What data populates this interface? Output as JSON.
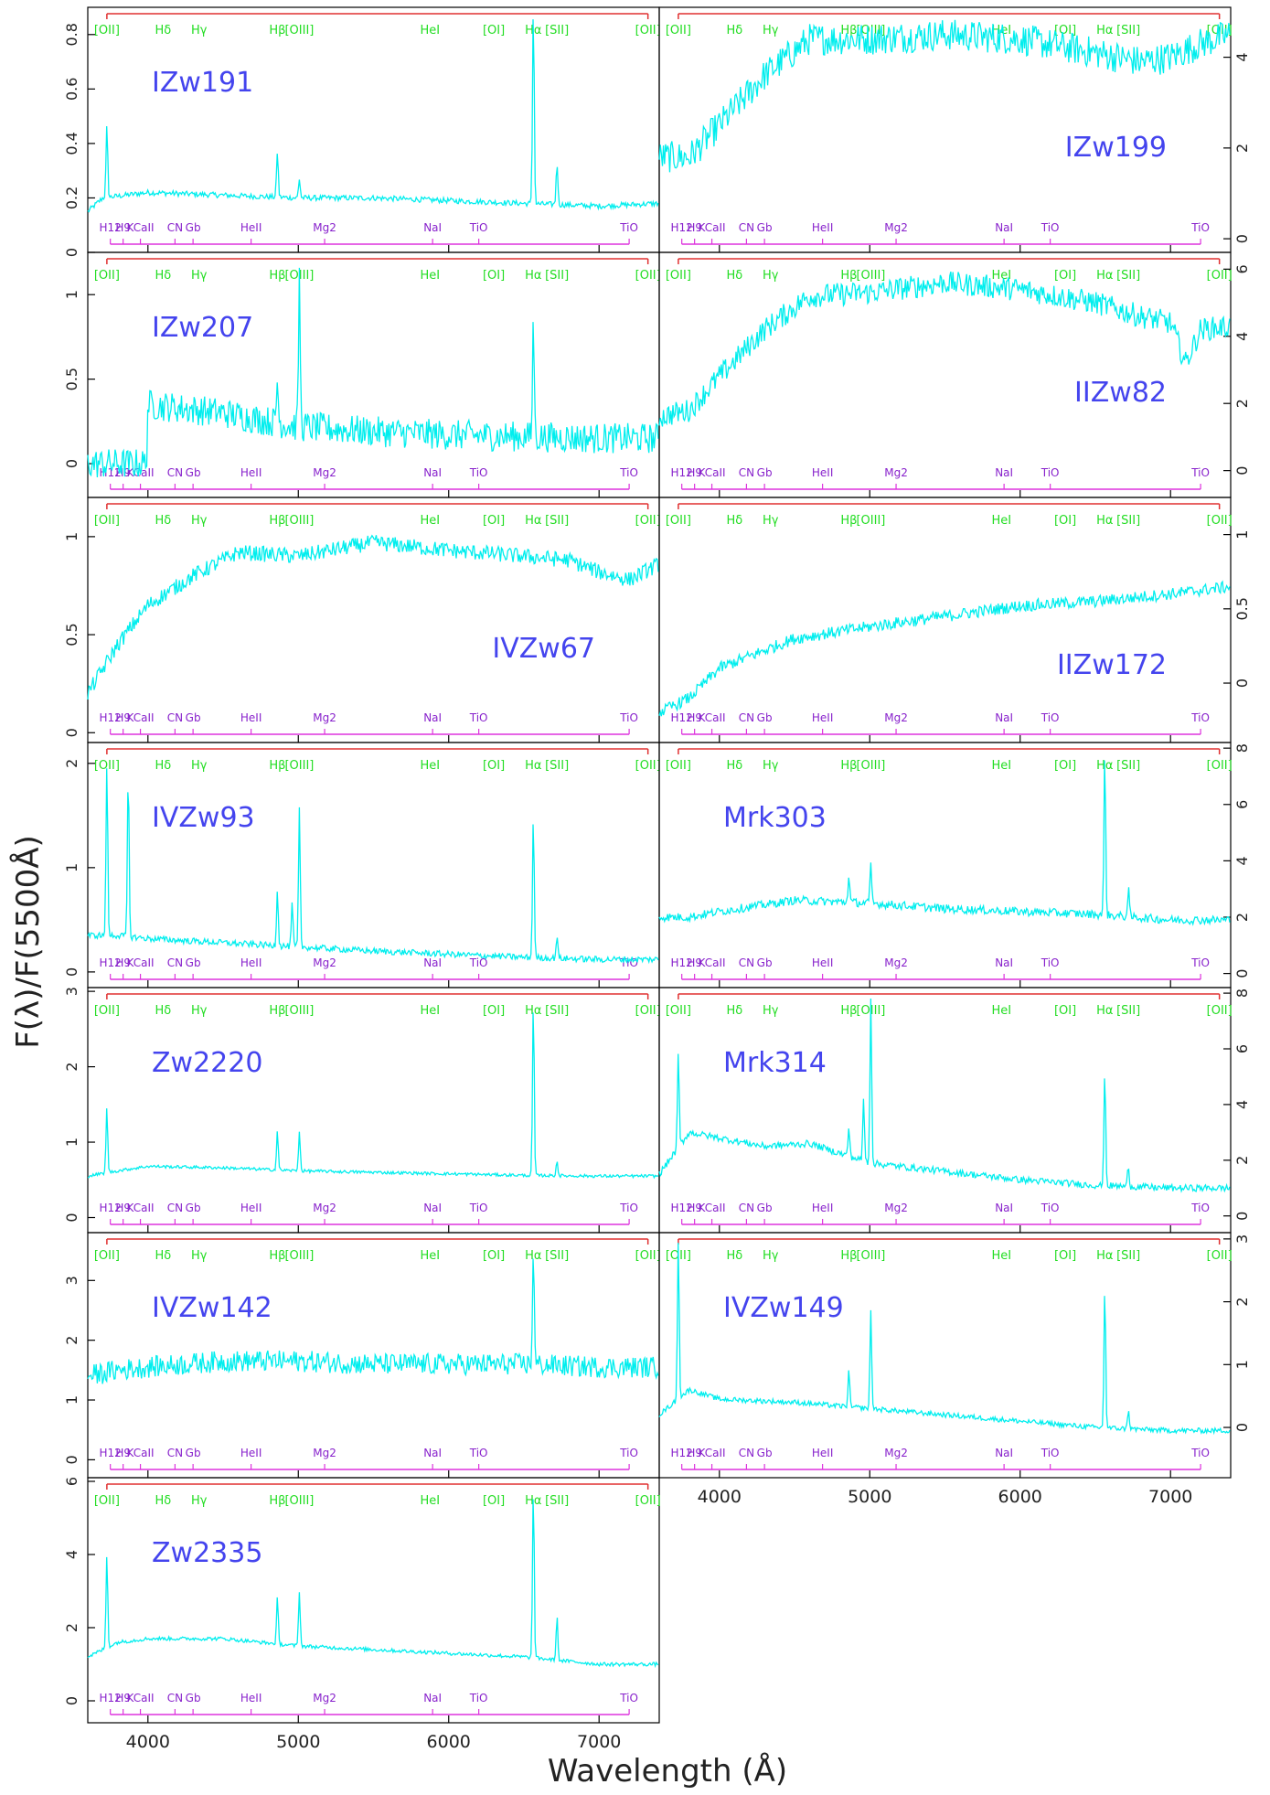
{
  "figure": {
    "xlabel": "Wavelength (Å)",
    "ylabel": "F(λ)/F(5500Å)",
    "xlim": [
      3600,
      7400
    ],
    "xticks": [
      4000,
      5000,
      6000,
      7000
    ]
  },
  "emission_lines": [
    {
      "label": "[OII]",
      "x": 3727
    },
    {
      "label": "Hδ",
      "x": 4101
    },
    {
      "label": "Hγ",
      "x": 4340
    },
    {
      "label": "Hβ",
      "x": 4861
    },
    {
      "label": "[OIII]",
      "x": 5007
    },
    {
      "label": "HeI",
      "x": 5876
    },
    {
      "label": "[OI]",
      "x": 6300
    },
    {
      "label": "Hα",
      "x": 6563
    },
    {
      "label": "[SII]",
      "x": 6720
    },
    {
      "label": "[OII]",
      "x": 7325
    }
  ],
  "absorption_lines": [
    {
      "label": "H12",
      "x": 3750
    },
    {
      "label": "H9",
      "x": 3835
    },
    {
      "label": "KCaII",
      "x": 3950
    },
    {
      "label": "CN",
      "x": 4180
    },
    {
      "label": "Gb",
      "x": 4300
    },
    {
      "label": "HeII",
      "x": 4686
    },
    {
      "label": "Mg2",
      "x": 5175
    },
    {
      "label": "NaI",
      "x": 5893
    },
    {
      "label": "TiO",
      "x": 6200
    },
    {
      "label": "TiO",
      "x": 7200
    }
  ],
  "chart_data": [
    {
      "type": "line",
      "name": "IZw191",
      "ylim": [
        0,
        0.9
      ],
      "yticks": [
        0,
        0.2,
        0.4,
        0.6,
        0.8
      ],
      "yticklabels": [
        "0",
        "0.2",
        "0.4",
        "0.6",
        "0.8"
      ],
      "continuum": [
        [
          3600,
          0.15
        ],
        [
          3700,
          0.2
        ],
        [
          4000,
          0.22
        ],
        [
          4500,
          0.21
        ],
        [
          5000,
          0.2
        ],
        [
          5500,
          0.2
        ],
        [
          6000,
          0.19
        ],
        [
          6500,
          0.18
        ],
        [
          7000,
          0.17
        ],
        [
          7400,
          0.18
        ]
      ],
      "peaks": [
        [
          3727,
          0.46
        ],
        [
          4861,
          0.37
        ],
        [
          5007,
          0.27
        ],
        [
          6563,
          0.9
        ],
        [
          6720,
          0.33
        ]
      ],
      "noise": 0.01
    },
    {
      "type": "line",
      "name": "IZw199",
      "ylim": [
        -0.3,
        5.1
      ],
      "yticks": [
        0,
        2,
        4
      ],
      "yticklabels": [
        "0",
        "2",
        "4"
      ],
      "continuum": [
        [
          3600,
          1.8
        ],
        [
          3800,
          1.8
        ],
        [
          4000,
          2.5
        ],
        [
          4300,
          3.6
        ],
        [
          4600,
          4.4
        ],
        [
          5000,
          4.4
        ],
        [
          5500,
          4.5
        ],
        [
          6000,
          4.4
        ],
        [
          6500,
          4.1
        ],
        [
          6800,
          3.9
        ],
        [
          7000,
          4.0
        ],
        [
          7200,
          4.3
        ],
        [
          7400,
          4.5
        ]
      ],
      "peaks": [],
      "noise": 0.35
    },
    {
      "type": "line",
      "name": "IZw207",
      "ylim": [
        -0.2,
        1.25
      ],
      "yticks": [
        0,
        0.5,
        1
      ],
      "yticklabels": [
        "0",
        "0.5",
        "1"
      ],
      "continuum": [
        [
          3600,
          0.0
        ],
        [
          3990,
          0.0
        ],
        [
          4000,
          0.35
        ],
        [
          4500,
          0.3
        ],
        [
          5000,
          0.22
        ],
        [
          5500,
          0.19
        ],
        [
          6000,
          0.17
        ],
        [
          6500,
          0.16
        ],
        [
          7000,
          0.15
        ],
        [
          7400,
          0.15
        ]
      ],
      "peaks": [
        [
          4861,
          0.5
        ],
        [
          5007,
          1.1
        ],
        [
          6563,
          0.85
        ]
      ],
      "noise": 0.09
    },
    {
      "type": "line",
      "name": "IIZw82",
      "ylim": [
        -0.8,
        6.5
      ],
      "yticks": [
        0,
        2,
        4,
        6
      ],
      "yticklabels": [
        "0",
        "2",
        "4",
        "6"
      ],
      "continuum": [
        [
          3600,
          1.6
        ],
        [
          3800,
          1.8
        ],
        [
          4000,
          2.8
        ],
        [
          4300,
          4.2
        ],
        [
          4600,
          5.2
        ],
        [
          5000,
          5.3
        ],
        [
          5500,
          5.6
        ],
        [
          6000,
          5.4
        ],
        [
          6500,
          5.0
        ],
        [
          6800,
          4.6
        ],
        [
          7000,
          4.4
        ],
        [
          7100,
          3.2
        ],
        [
          7200,
          4.2
        ],
        [
          7400,
          4.3
        ]
      ],
      "peaks": [],
      "noise": 0.35
    },
    {
      "type": "line",
      "name": "IVZw67",
      "ylim": [
        -0.05,
        1.2
      ],
      "yticks": [
        0,
        0.5,
        1
      ],
      "yticklabels": [
        "0",
        "0.5",
        "1"
      ],
      "continuum": [
        [
          3600,
          0.2
        ],
        [
          3800,
          0.45
        ],
        [
          4000,
          0.65
        ],
        [
          4300,
          0.8
        ],
        [
          4600,
          0.92
        ],
        [
          5000,
          0.9
        ],
        [
          5500,
          0.97
        ],
        [
          6000,
          0.93
        ],
        [
          6500,
          0.9
        ],
        [
          6800,
          0.88
        ],
        [
          7000,
          0.82
        ],
        [
          7200,
          0.78
        ],
        [
          7400,
          0.86
        ]
      ],
      "peaks": [],
      "noise": 0.04
    },
    {
      "type": "line",
      "name": "IIZw172",
      "ylim": [
        -0.4,
        1.25
      ],
      "yticks": [
        0,
        0.5,
        1
      ],
      "yticklabels": [
        "0",
        "0.5",
        "1"
      ],
      "continuum": [
        [
          3600,
          -0.2
        ],
        [
          3800,
          -0.1
        ],
        [
          4000,
          0.1
        ],
        [
          4500,
          0.3
        ],
        [
          5000,
          0.38
        ],
        [
          5500,
          0.45
        ],
        [
          6000,
          0.52
        ],
        [
          6500,
          0.55
        ],
        [
          7000,
          0.6
        ],
        [
          7400,
          0.65
        ]
      ],
      "peaks": [],
      "noise": 0.04
    },
    {
      "type": "line",
      "name": "IVZw93",
      "ylim": [
        -0.15,
        2.2
      ],
      "yticks": [
        0,
        1,
        2
      ],
      "yticklabels": [
        "0",
        "1",
        "2"
      ],
      "continuum": [
        [
          3600,
          0.35
        ],
        [
          3800,
          0.35
        ],
        [
          4000,
          0.32
        ],
        [
          4500,
          0.28
        ],
        [
          5000,
          0.24
        ],
        [
          5500,
          0.2
        ],
        [
          6000,
          0.17
        ],
        [
          6500,
          0.14
        ],
        [
          7000,
          0.12
        ],
        [
          7400,
          0.12
        ]
      ],
      "peaks": [
        [
          3727,
          2.0
        ],
        [
          3869,
          1.9
        ],
        [
          4861,
          0.8
        ],
        [
          4959,
          0.65
        ],
        [
          5007,
          1.55
        ],
        [
          6563,
          1.5
        ],
        [
          6720,
          0.35
        ]
      ],
      "noise": 0.03
    },
    {
      "type": "line",
      "name": "Mrk303",
      "ylim": [
        -0.5,
        8.2
      ],
      "yticks": [
        0,
        2,
        4,
        6,
        8
      ],
      "yticklabels": [
        "0",
        "2",
        "4",
        "6",
        "8"
      ],
      "continuum": [
        [
          3600,
          2.0
        ],
        [
          3800,
          2.0
        ],
        [
          4000,
          2.2
        ],
        [
          4500,
          2.6
        ],
        [
          5000,
          2.5
        ],
        [
          5500,
          2.3
        ],
        [
          6000,
          2.2
        ],
        [
          6500,
          2.1
        ],
        [
          7000,
          1.9
        ],
        [
          7400,
          1.9
        ]
      ],
      "peaks": [
        [
          4861,
          3.5
        ],
        [
          5007,
          3.8
        ],
        [
          6563,
          7.8
        ],
        [
          6720,
          3.0
        ]
      ],
      "noise": 0.15
    },
    {
      "type": "line",
      "name": "Zw2220",
      "ylim": [
        -0.2,
        3.05
      ],
      "yticks": [
        0,
        1,
        2,
        3
      ],
      "yticklabels": [
        "0",
        "1",
        "2",
        "3"
      ],
      "continuum": [
        [
          3600,
          0.55
        ],
        [
          3800,
          0.62
        ],
        [
          4000,
          0.68
        ],
        [
          4500,
          0.66
        ],
        [
          5000,
          0.62
        ],
        [
          5500,
          0.6
        ],
        [
          6000,
          0.58
        ],
        [
          6500,
          0.56
        ],
        [
          7000,
          0.55
        ],
        [
          7400,
          0.55
        ]
      ],
      "peaks": [
        [
          3727,
          1.45
        ],
        [
          4861,
          1.15
        ],
        [
          5007,
          1.15
        ],
        [
          6563,
          2.85
        ],
        [
          6720,
          0.75
        ]
      ],
      "noise": 0.02
    },
    {
      "type": "line",
      "name": "Mrk314",
      "ylim": [
        -0.6,
        8.2
      ],
      "yticks": [
        0,
        2,
        4,
        6,
        8
      ],
      "yticklabels": [
        "0",
        "2",
        "4",
        "6",
        "8"
      ],
      "continuum": [
        [
          3600,
          1.5
        ],
        [
          3800,
          3.0
        ],
        [
          4000,
          2.8
        ],
        [
          4300,
          2.5
        ],
        [
          4600,
          2.6
        ],
        [
          5000,
          1.9
        ],
        [
          5500,
          1.6
        ],
        [
          6000,
          1.3
        ],
        [
          6500,
          1.1
        ],
        [
          7000,
          1.0
        ],
        [
          7400,
          1.0
        ]
      ],
      "peaks": [
        [
          3727,
          5.8
        ],
        [
          4861,
          3.2
        ],
        [
          4959,
          4.2
        ],
        [
          5007,
          7.8
        ],
        [
          6563,
          5.3
        ],
        [
          6720,
          1.8
        ]
      ],
      "noise": 0.12
    },
    {
      "type": "line",
      "name": "IVZw142",
      "ylim": [
        -0.3,
        3.8
      ],
      "yticks": [
        0,
        1,
        2,
        3
      ],
      "yticklabels": [
        "0",
        "1",
        "2",
        "3"
      ],
      "continuum": [
        [
          3600,
          1.4
        ],
        [
          3800,
          1.5
        ],
        [
          4000,
          1.55
        ],
        [
          4500,
          1.65
        ],
        [
          5000,
          1.65
        ],
        [
          5500,
          1.6
        ],
        [
          6000,
          1.6
        ],
        [
          6500,
          1.6
        ],
        [
          7000,
          1.55
        ],
        [
          7400,
          1.55
        ]
      ],
      "peaks": [
        [
          6563,
          3.6
        ]
      ],
      "noise": 0.18
    },
    {
      "type": "line",
      "name": "IVZw149",
      "ylim": [
        -0.8,
        3.1
      ],
      "yticks": [
        0,
        1,
        2,
        3
      ],
      "yticklabels": [
        "0",
        "1",
        "2",
        "3"
      ],
      "continuum": [
        [
          3600,
          0.2
        ],
        [
          3800,
          0.6
        ],
        [
          4000,
          0.45
        ],
        [
          4500,
          0.4
        ],
        [
          5000,
          0.3
        ],
        [
          5500,
          0.2
        ],
        [
          6000,
          0.1
        ],
        [
          6500,
          0.0
        ],
        [
          7000,
          -0.05
        ],
        [
          7400,
          -0.05
        ]
      ],
      "peaks": [
        [
          3727,
          3.0
        ],
        [
          4861,
          0.9
        ],
        [
          5007,
          1.85
        ],
        [
          6563,
          2.25
        ],
        [
          6720,
          0.3
        ]
      ],
      "noise": 0.04
    },
    {
      "type": "line",
      "name": "Zw2335",
      "ylim": [
        -0.6,
        6.1
      ],
      "yticks": [
        0,
        2,
        4,
        6
      ],
      "yticklabels": [
        "0",
        "2",
        "4",
        "6"
      ],
      "continuum": [
        [
          3600,
          1.2
        ],
        [
          3800,
          1.6
        ],
        [
          4000,
          1.7
        ],
        [
          4500,
          1.7
        ],
        [
          5000,
          1.5
        ],
        [
          5500,
          1.4
        ],
        [
          6000,
          1.3
        ],
        [
          6500,
          1.2
        ],
        [
          7000,
          1.0
        ],
        [
          7400,
          1.0
        ]
      ],
      "peaks": [
        [
          3727,
          4.0
        ],
        [
          4861,
          2.8
        ],
        [
          5007,
          3.0
        ],
        [
          6563,
          5.8
        ],
        [
          6720,
          2.3
        ]
      ],
      "noise": 0.05
    }
  ]
}
